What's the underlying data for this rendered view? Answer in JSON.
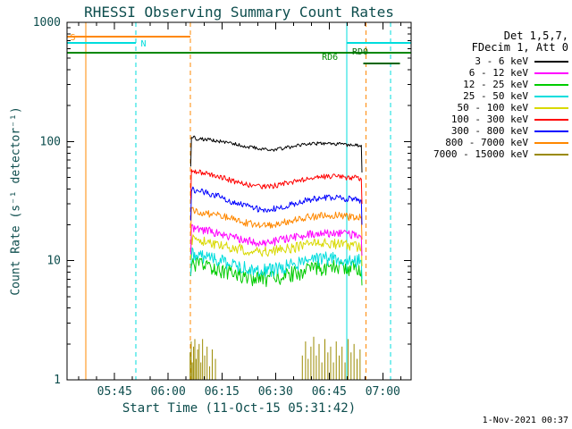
{
  "title": "RHESSI Observing Summary Count Rates",
  "timestamp": "1-Nov-2021 00:37",
  "colors": {
    "text": "#0d4d4d",
    "axis": "#000000",
    "background": "#ffffff"
  },
  "legend": {
    "header1": "Det 1,5,7,",
    "header2": "FDecim 1, Att 0",
    "entries": [
      {
        "label": "3 - 6 keV",
        "color": "#000000"
      },
      {
        "label": "6 - 12 keV",
        "color": "#ff00ff"
      },
      {
        "label": "12 - 25 keV",
        "color": "#00cc00"
      },
      {
        "label": "25 - 50 keV",
        "color": "#00dddd"
      },
      {
        "label": "50 - 100 keV",
        "color": "#d9d900"
      },
      {
        "label": "100 - 300 keV",
        "color": "#ff0000"
      },
      {
        "label": "300 - 800 keV",
        "color": "#0000ff"
      },
      {
        "label": "800 - 7000 keV",
        "color": "#ff8800"
      },
      {
        "label": "7000 - 15000 keV",
        "color": "#9a8a00"
      }
    ]
  },
  "chart_data": {
    "type": "line",
    "title": "RHESSI Observing Summary Count Rates",
    "xlabel": "Start Time (11-Oct-15 05:31:42)",
    "ylabel": "Count Rate (s⁻¹ detector⁻¹)",
    "yscale": "log",
    "ylim": [
      1,
      1000
    ],
    "xlim_hours": [
      5.5283,
      7.132
    ],
    "x_ticks": [
      {
        "t": 5.75,
        "label": "05:45"
      },
      {
        "t": 6.0,
        "label": "06:00"
      },
      {
        "t": 6.25,
        "label": "06:15"
      },
      {
        "t": 6.5,
        "label": "06:30"
      },
      {
        "t": 6.75,
        "label": "06:45"
      },
      {
        "t": 7.0,
        "label": "07:00"
      }
    ],
    "y_ticks": [
      {
        "v": 1,
        "label": "1"
      },
      {
        "v": 10,
        "label": "10"
      },
      {
        "v": 100,
        "label": "100"
      },
      {
        "v": 1000,
        "label": "1000"
      }
    ],
    "flags": [
      {
        "label": "S",
        "color": "#ff8800",
        "value": 760,
        "label_t": 5.543,
        "label_dy": 4,
        "segments": [
          [
            5.5283,
            6.103
          ]
        ]
      },
      {
        "label": "N",
        "color": "#00dddd",
        "value": 670,
        "label_t": 5.872,
        "label_dy": 4,
        "segments": [
          [
            5.5283,
            5.849
          ],
          [
            6.832,
            7.132
          ]
        ]
      },
      {
        "label": "RD6",
        "color": "#008800",
        "value": 555,
        "label_t": 6.716,
        "label_dy": 8,
        "segments": [
          [
            5.5283,
            7.132
          ]
        ]
      },
      {
        "label": "RD0",
        "color": "#006600",
        "value": 450,
        "label_t": 6.857,
        "label_dy": -10,
        "segments": [
          [
            6.91,
            7.08
          ]
        ]
      }
    ],
    "vlines": [
      {
        "t": 5.616,
        "style": "solid",
        "color": "#ff8800"
      },
      {
        "t": 5.849,
        "style": "dashed",
        "color": "#00dddd"
      },
      {
        "t": 6.103,
        "style": "dashed",
        "color": "#ff8800"
      },
      {
        "t": 6.832,
        "style": "solid",
        "color": "#00dddd"
      },
      {
        "t": 6.921,
        "style": "dashed",
        "color": "#ff8800"
      },
      {
        "t": 7.037,
        "style": "dashed",
        "color": "#00dddd"
      }
    ],
    "series": [
      {
        "name": "12 - 25 keV",
        "color": "#00cc00",
        "noise": 0.15,
        "points": [
          [
            6.105,
            6.5
          ],
          [
            6.108,
            9.6
          ],
          [
            6.13,
            9.3
          ],
          [
            6.18,
            9.0
          ],
          [
            6.23,
            8.6
          ],
          [
            6.28,
            8.1
          ],
          [
            6.33,
            7.7
          ],
          [
            6.38,
            7.3
          ],
          [
            6.43,
            7.1
          ],
          [
            6.48,
            7.1
          ],
          [
            6.53,
            7.4
          ],
          [
            6.58,
            7.8
          ],
          [
            6.63,
            8.2
          ],
          [
            6.68,
            8.6
          ],
          [
            6.73,
            8.9
          ],
          [
            6.78,
            8.8
          ],
          [
            6.83,
            8.7
          ],
          [
            6.87,
            8.6
          ],
          [
            6.9,
            8.5
          ],
          [
            6.903,
            6.2
          ]
        ]
      },
      {
        "name": "25 - 50 keV",
        "color": "#00dddd",
        "noise": 0.13,
        "points": [
          [
            6.105,
            7.5
          ],
          [
            6.108,
            11.5
          ],
          [
            6.13,
            11.2
          ],
          [
            6.18,
            10.8
          ],
          [
            6.23,
            10.2
          ],
          [
            6.28,
            9.6
          ],
          [
            6.33,
            9.1
          ],
          [
            6.38,
            8.7
          ],
          [
            6.43,
            8.4
          ],
          [
            6.48,
            8.4
          ],
          [
            6.53,
            8.8
          ],
          [
            6.58,
            9.3
          ],
          [
            6.63,
            9.8
          ],
          [
            6.68,
            10.2
          ],
          [
            6.73,
            10.5
          ],
          [
            6.78,
            10.4
          ],
          [
            6.83,
            10.2
          ],
          [
            6.87,
            10.1
          ],
          [
            6.9,
            10.0
          ],
          [
            6.903,
            7.0
          ]
        ]
      },
      {
        "name": "50 - 100 keV",
        "color": "#d9d900",
        "noise": 0.1,
        "points": [
          [
            6.105,
            10
          ],
          [
            6.108,
            15.2
          ],
          [
            6.13,
            14.8
          ],
          [
            6.18,
            14.4
          ],
          [
            6.23,
            13.8
          ],
          [
            6.28,
            13.2
          ],
          [
            6.33,
            12.7
          ],
          [
            6.38,
            12.2
          ],
          [
            6.43,
            12.0
          ],
          [
            6.48,
            12.0
          ],
          [
            6.53,
            12.4
          ],
          [
            6.58,
            12.9
          ],
          [
            6.63,
            13.4
          ],
          [
            6.68,
            13.8
          ],
          [
            6.73,
            14.0
          ],
          [
            6.78,
            13.9
          ],
          [
            6.83,
            13.6
          ],
          [
            6.87,
            13.3
          ],
          [
            6.9,
            13.2
          ],
          [
            6.903,
            9.0
          ]
        ]
      },
      {
        "name": "6 - 12 keV",
        "color": "#ff00ff",
        "noise": 0.08,
        "points": [
          [
            6.105,
            12
          ],
          [
            6.108,
            19
          ],
          [
            6.13,
            18.5
          ],
          [
            6.18,
            18
          ],
          [
            6.23,
            17
          ],
          [
            6.28,
            16.2
          ],
          [
            6.33,
            15.3
          ],
          [
            6.38,
            14.7
          ],
          [
            6.43,
            14.2
          ],
          [
            6.48,
            14.3
          ],
          [
            6.53,
            15
          ],
          [
            6.58,
            15.7
          ],
          [
            6.63,
            16.3
          ],
          [
            6.68,
            16.8
          ],
          [
            6.73,
            17
          ],
          [
            6.78,
            17
          ],
          [
            6.83,
            16.8
          ],
          [
            6.87,
            16.5
          ],
          [
            6.9,
            16.3
          ],
          [
            6.903,
            11
          ]
        ]
      },
      {
        "name": "800 - 7000 keV",
        "color": "#ff8800",
        "noise": 0.07,
        "points": [
          [
            6.105,
            16
          ],
          [
            6.108,
            27
          ],
          [
            6.13,
            26
          ],
          [
            6.18,
            25
          ],
          [
            6.23,
            24
          ],
          [
            6.28,
            23
          ],
          [
            6.33,
            21.5
          ],
          [
            6.38,
            20.5
          ],
          [
            6.43,
            20
          ],
          [
            6.48,
            20
          ],
          [
            6.53,
            21
          ],
          [
            6.58,
            22
          ],
          [
            6.63,
            23
          ],
          [
            6.68,
            23.5
          ],
          [
            6.73,
            24
          ],
          [
            6.78,
            24
          ],
          [
            6.83,
            23.5
          ],
          [
            6.87,
            23
          ],
          [
            6.9,
            23
          ],
          [
            6.903,
            15
          ]
        ]
      },
      {
        "name": "300 - 800 keV",
        "color": "#0000ff",
        "noise": 0.06,
        "points": [
          [
            6.105,
            22
          ],
          [
            6.108,
            40
          ],
          [
            6.13,
            39
          ],
          [
            6.18,
            37
          ],
          [
            6.23,
            35
          ],
          [
            6.28,
            32
          ],
          [
            6.33,
            30
          ],
          [
            6.38,
            28
          ],
          [
            6.43,
            27
          ],
          [
            6.48,
            27
          ],
          [
            6.53,
            28
          ],
          [
            6.58,
            30
          ],
          [
            6.63,
            32
          ],
          [
            6.68,
            33
          ],
          [
            6.73,
            34
          ],
          [
            6.78,
            34
          ],
          [
            6.83,
            33
          ],
          [
            6.87,
            33
          ],
          [
            6.9,
            32
          ],
          [
            6.903,
            20
          ]
        ]
      },
      {
        "name": "100 - 300 keV",
        "color": "#ff0000",
        "noise": 0.05,
        "points": [
          [
            6.105,
            32
          ],
          [
            6.108,
            58
          ],
          [
            6.13,
            56
          ],
          [
            6.18,
            54
          ],
          [
            6.23,
            51
          ],
          [
            6.28,
            48
          ],
          [
            6.33,
            45
          ],
          [
            6.38,
            43
          ],
          [
            6.43,
            42
          ],
          [
            6.48,
            42
          ],
          [
            6.53,
            44
          ],
          [
            6.58,
            46
          ],
          [
            6.63,
            48
          ],
          [
            6.68,
            50
          ],
          [
            6.73,
            51
          ],
          [
            6.78,
            51
          ],
          [
            6.83,
            50
          ],
          [
            6.87,
            50
          ],
          [
            6.9,
            49
          ],
          [
            6.903,
            30
          ]
        ]
      },
      {
        "name": "3 - 6 keV",
        "color": "#000000",
        "noise": 0.035,
        "points": [
          [
            6.105,
            62
          ],
          [
            6.108,
            112
          ],
          [
            6.13,
            106
          ],
          [
            6.18,
            104
          ],
          [
            6.23,
            101
          ],
          [
            6.28,
            98
          ],
          [
            6.33,
            94
          ],
          [
            6.38,
            90
          ],
          [
            6.43,
            87
          ],
          [
            6.48,
            85
          ],
          [
            6.53,
            87
          ],
          [
            6.58,
            91
          ],
          [
            6.63,
            94
          ],
          [
            6.68,
            96
          ],
          [
            6.73,
            96
          ],
          [
            6.78,
            95
          ],
          [
            6.83,
            94
          ],
          [
            6.87,
            93
          ],
          [
            6.9,
            92
          ],
          [
            6.903,
            55
          ]
        ]
      }
    ],
    "spike_series": {
      "name": "7000 - 15000 keV",
      "color": "#9a8a00",
      "spikes": [
        [
          6.102,
          1.7
        ],
        [
          6.107,
          2.1
        ],
        [
          6.112,
          1.4
        ],
        [
          6.118,
          1.9
        ],
        [
          6.124,
          2.2
        ],
        [
          6.13,
          1.5
        ],
        [
          6.137,
          1.8
        ],
        [
          6.144,
          2.0
        ],
        [
          6.152,
          1.4
        ],
        [
          6.16,
          2.2
        ],
        [
          6.17,
          1.6
        ],
        [
          6.181,
          1.9
        ],
        [
          6.193,
          1.3
        ],
        [
          6.205,
          1.8
        ],
        [
          6.22,
          1.5
        ],
        [
          6.625,
          1.6
        ],
        [
          6.64,
          2.1
        ],
        [
          6.652,
          1.5
        ],
        [
          6.665,
          1.9
        ],
        [
          6.678,
          2.3
        ],
        [
          6.69,
          1.6
        ],
        [
          6.703,
          2.0
        ],
        [
          6.716,
          1.4
        ],
        [
          6.73,
          2.2
        ],
        [
          6.744,
          1.7
        ],
        [
          6.757,
          1.9
        ],
        [
          6.77,
          1.4
        ],
        [
          6.783,
          2.1
        ],
        [
          6.797,
          1.6
        ],
        [
          6.81,
          1.9
        ],
        [
          6.824,
          1.4
        ],
        [
          6.838,
          2.2
        ],
        [
          6.852,
          1.7
        ],
        [
          6.866,
          2.0
        ],
        [
          6.88,
          1.5
        ],
        [
          6.894,
          1.8
        ]
      ]
    }
  }
}
